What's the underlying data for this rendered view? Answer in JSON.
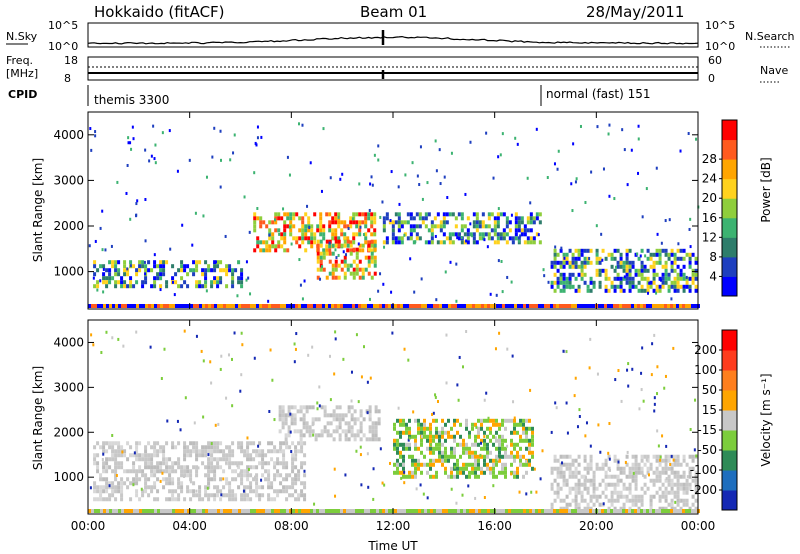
{
  "header": {
    "station": "Hokkaido (fitACF)",
    "beam": "Beam 01",
    "date": "28/May/2011"
  },
  "noise_panel": {
    "left_label": "N.Sky",
    "right_label": "N.Search",
    "left_ticks": [
      "10^5",
      "10^0"
    ],
    "right_ticks": [
      "10^5",
      "10^0"
    ]
  },
  "freq_panel": {
    "label_line1": "Freq.",
    "label_line2": "[MHz]",
    "left_ticks": [
      "18",
      "8"
    ],
    "right_ticks": [
      "60",
      "0"
    ],
    "right_label": "Nave"
  },
  "cpid_panel": {
    "label": "CPID",
    "segments": [
      {
        "start_hour": 0,
        "label": "themis 3300"
      },
      {
        "start_hour": 18,
        "label": "normal (fast) 151"
      }
    ]
  },
  "chart_data": [
    {
      "type": "heatmap",
      "ylabel": "Slant Range [km]",
      "xlabel": "Time UT",
      "x_ticks": [
        "00:00",
        "04:00",
        "08:00",
        "12:00",
        "16:00",
        "20:00",
        "00:00"
      ],
      "x_tick_hours": [
        0,
        4,
        8,
        12,
        16,
        20,
        24
      ],
      "y_ticks": [
        1000,
        2000,
        3000,
        4000
      ],
      "ylim": [
        180,
        4500
      ],
      "colorbar": {
        "label": "Power [dB]",
        "ticks": [
          "4",
          "8",
          "12",
          "16",
          "20",
          "24",
          "28"
        ],
        "colors": [
          "#0000ff",
          "#1e3fbf",
          "#2e7d6b",
          "#3cb371",
          "#8fce3c",
          "#ffd21e",
          "#ffa500",
          "#ff5a1e",
          "#ff0000"
        ]
      },
      "regions": [
        {
          "t0": 0.2,
          "t1": 6.0,
          "r0": 700,
          "r1": 1250,
          "value": "mid"
        },
        {
          "t0": 6.5,
          "t1": 11.3,
          "r0": 1500,
          "r1": 2300,
          "value": "high"
        },
        {
          "t0": 9.0,
          "t1": 11.3,
          "r0": 900,
          "r1": 1700,
          "value": "high"
        },
        {
          "t0": 11.6,
          "t1": 17.8,
          "r0": 1600,
          "r1": 2300,
          "value": "mid"
        },
        {
          "t0": 18.2,
          "t1": 23.9,
          "r0": 600,
          "r1": 1500,
          "value": "mid"
        }
      ]
    },
    {
      "type": "heatmap",
      "ylabel": "Slant Range [km]",
      "xlabel": "Time UT",
      "x_ticks": [
        "00:00",
        "04:00",
        "08:00",
        "12:00",
        "16:00",
        "20:00",
        "00:00"
      ],
      "x_tick_hours": [
        0,
        4,
        8,
        12,
        16,
        20,
        24
      ],
      "y_ticks": [
        1000,
        2000,
        3000,
        4000
      ],
      "ylim": [
        180,
        4500
      ],
      "colorbar": {
        "label": "Velocity [m s⁻¹]",
        "ticks": [
          "200",
          "100",
          "50",
          "15",
          "-15",
          "-50",
          "-100",
          "-200"
        ],
        "colors": [
          "#1428b4",
          "#1e6ebe",
          "#2e8b57",
          "#7ccd3c",
          "#c8c8c8",
          "#ffa500",
          "#ff7f1e",
          "#ff3c1e",
          "#ff0000"
        ]
      },
      "regions": [
        {
          "t0": 0.2,
          "t1": 8.5,
          "r0": 500,
          "r1": 1800,
          "value": "ground"
        },
        {
          "t0": 7.5,
          "t1": 11.5,
          "r0": 1800,
          "r1": 2600,
          "value": "ground"
        },
        {
          "t0": 12.0,
          "t1": 17.5,
          "r0": 1000,
          "r1": 2300,
          "value": "pos"
        },
        {
          "t0": 18.2,
          "t1": 23.9,
          "r0": 300,
          "r1": 1500,
          "value": "ground"
        }
      ]
    }
  ],
  "colors": {
    "axis": "#000000"
  }
}
